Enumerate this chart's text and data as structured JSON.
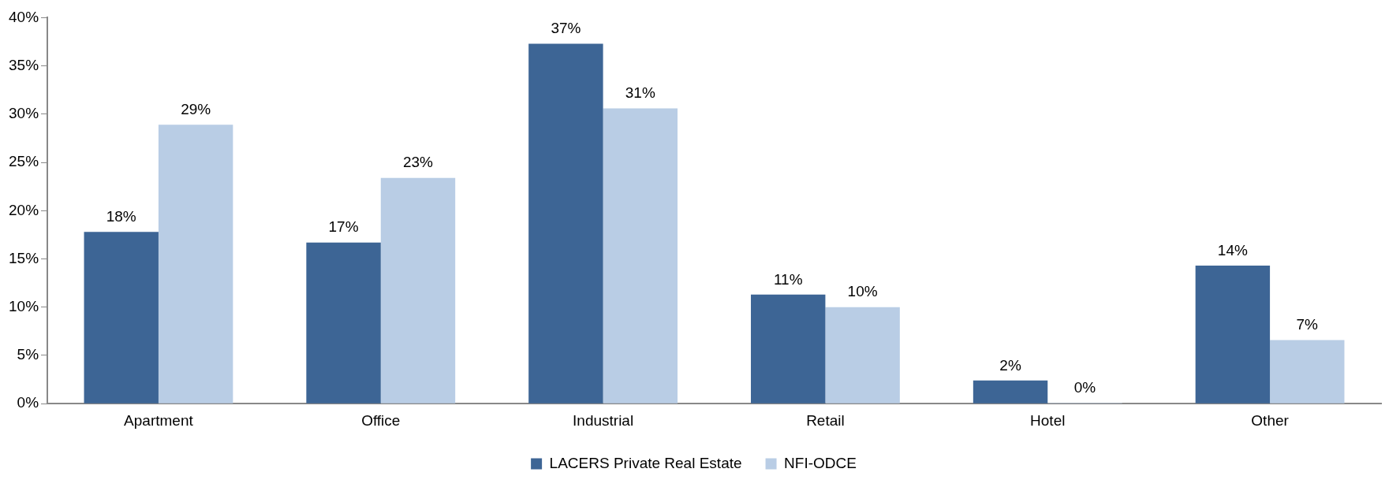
{
  "chart_data": {
    "type": "bar",
    "categories": [
      "Apartment",
      "Office",
      "Industrial",
      "Retail",
      "Hotel",
      "Other"
    ],
    "series": [
      {
        "name": "LACERS Private Real Estate",
        "color": "#3d6595",
        "values": [
          17.8,
          16.7,
          37.3,
          11.3,
          2.4,
          14.3
        ],
        "value_labels": [
          "18%",
          "17%",
          "37%",
          "11%",
          "2%",
          "14%"
        ]
      },
      {
        "name": "NFI-ODCE",
        "color": "#b9cde5",
        "values": [
          28.9,
          23.4,
          30.6,
          10.0,
          0,
          6.6
        ],
        "value_labels": [
          "29%",
          "23%",
          "31%",
          "10%",
          "0%",
          "7%"
        ]
      }
    ],
    "ylim": [
      0,
      40
    ],
    "yticks": [
      {
        "value": 0,
        "label": "0%"
      },
      {
        "value": 5,
        "label": "5%"
      },
      {
        "value": 10,
        "label": "10%"
      },
      {
        "value": 15,
        "label": "15%"
      },
      {
        "value": 20,
        "label": "20%"
      },
      {
        "value": 25,
        "label": "25%"
      },
      {
        "value": 30,
        "label": "30%"
      },
      {
        "value": 35,
        "label": "35%"
      },
      {
        "value": 40,
        "label": "40%"
      }
    ],
    "grid": false,
    "legend": "bottom"
  }
}
